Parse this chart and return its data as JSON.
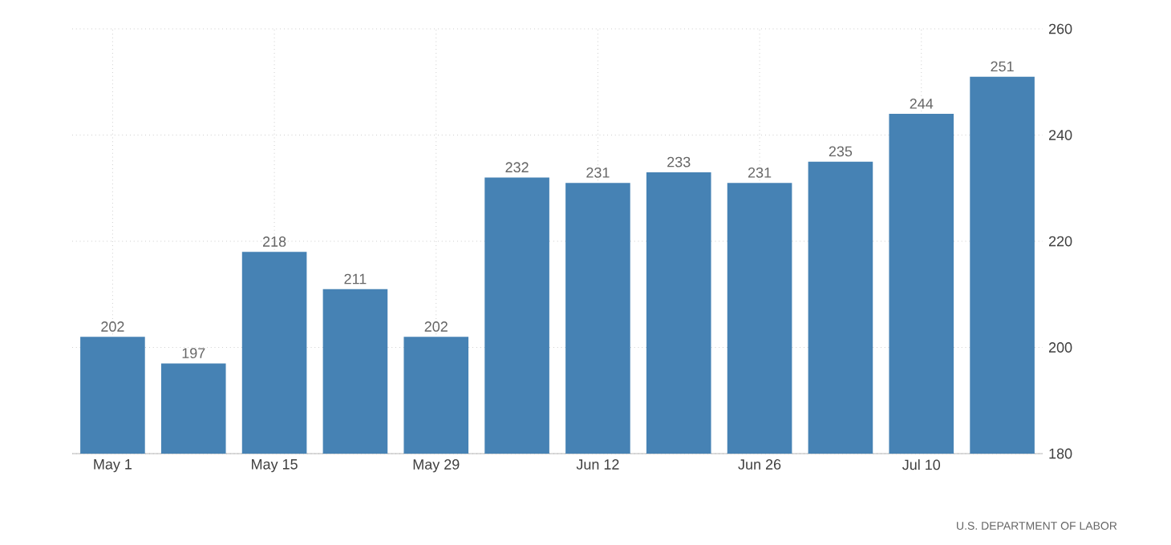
{
  "chart_data": {
    "type": "bar",
    "categories": [
      "May 1",
      null,
      "May 15",
      null,
      "May 29",
      null,
      "Jun 12",
      null,
      "Jun 26",
      null,
      "Jul 10",
      null
    ],
    "values": [
      202,
      197,
      218,
      211,
      202,
      232,
      231,
      233,
      231,
      235,
      244,
      251
    ],
    "color": "#4682b4",
    "ylim": [
      180,
      260
    ],
    "yticks": [
      180,
      200,
      220,
      240,
      260
    ],
    "grid": true,
    "data_labels": true,
    "annotations": [
      "U.S. DEPARTMENT OF LABOR"
    ]
  }
}
